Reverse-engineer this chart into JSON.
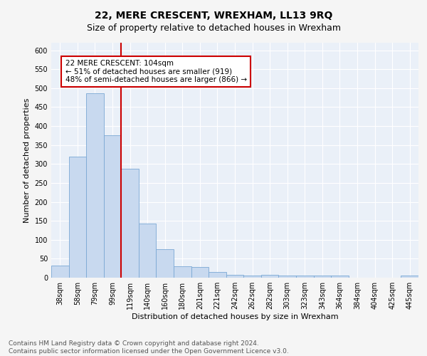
{
  "title": "22, MERE CRESCENT, WREXHAM, LL13 9RQ",
  "subtitle": "Size of property relative to detached houses in Wrexham",
  "xlabel": "Distribution of detached houses by size in Wrexham",
  "ylabel": "Number of detached properties",
  "categories": [
    "38sqm",
    "58sqm",
    "79sqm",
    "99sqm",
    "119sqm",
    "140sqm",
    "160sqm",
    "180sqm",
    "201sqm",
    "221sqm",
    "242sqm",
    "262sqm",
    "282sqm",
    "303sqm",
    "323sqm",
    "343sqm",
    "364sqm",
    "384sqm",
    "404sqm",
    "425sqm",
    "445sqm"
  ],
  "values": [
    32,
    320,
    487,
    375,
    288,
    142,
    76,
    31,
    28,
    15,
    8,
    6,
    7,
    6,
    5,
    5,
    5,
    0,
    0,
    0,
    5
  ],
  "bar_color": "#c8d9ef",
  "bar_edge_color": "#7aa8d4",
  "red_line_x": 3.5,
  "annotation_text": "22 MERE CRESCENT: 104sqm\n← 51% of detached houses are smaller (919)\n48% of semi-detached houses are larger (866) →",
  "annotation_box_color": "#ffffff",
  "annotation_box_edge": "#cc0000",
  "red_line_color": "#cc0000",
  "ylim": [
    0,
    620
  ],
  "yticks": [
    0,
    50,
    100,
    150,
    200,
    250,
    300,
    350,
    400,
    450,
    500,
    550,
    600
  ],
  "footnote": "Contains HM Land Registry data © Crown copyright and database right 2024.\nContains public sector information licensed under the Open Government Licence v3.0.",
  "bg_color": "#eaf0f8",
  "grid_color": "#ffffff",
  "fig_bg_color": "#f5f5f5",
  "title_fontsize": 10,
  "subtitle_fontsize": 9,
  "axis_label_fontsize": 8,
  "tick_fontsize": 7,
  "annotation_fontsize": 7.5,
  "footnote_fontsize": 6.5
}
